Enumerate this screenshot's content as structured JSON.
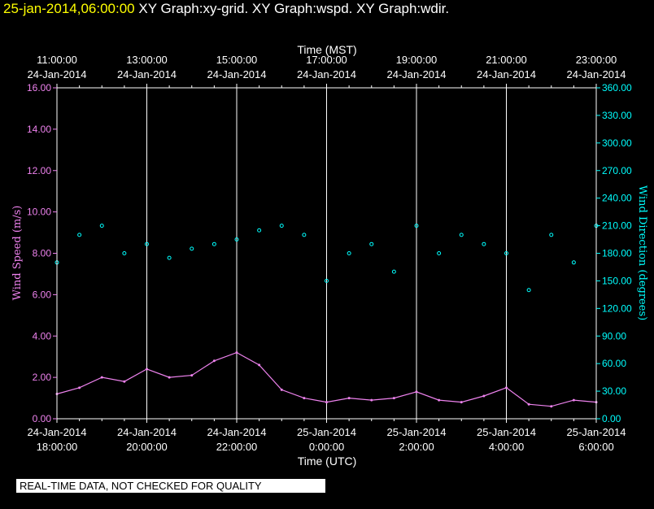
{
  "header": {
    "timestamp": "25-jan-2014,06:00:00",
    "graphs": "XY Graph:xy-grid.  XY Graph:wspd.  XY Graph:wdir."
  },
  "notice": "REAL-TIME DATA, NOT CHECKED FOR QUALITY",
  "colors": {
    "background": "#000000",
    "speed": "#ee82ee",
    "direction": "#00ffff",
    "grid": "#ffffff",
    "header_time": "#ffff00"
  },
  "chart_data": {
    "type": "scatter",
    "title": "",
    "top_axis": {
      "label": "Time (MST)",
      "ticks": [
        {
          "time": "11:00:00",
          "date": "24-Jan-2014"
        },
        {
          "time": "13:00:00",
          "date": "24-Jan-2014"
        },
        {
          "time": "15:00:00",
          "date": "24-Jan-2014"
        },
        {
          "time": "17:00:00",
          "date": "24-Jan-2014"
        },
        {
          "time": "19:00:00",
          "date": "24-Jan-2014"
        },
        {
          "time": "21:00:00",
          "date": "24-Jan-2014"
        },
        {
          "time": "23:00:00",
          "date": "24-Jan-2014"
        }
      ]
    },
    "bottom_axis": {
      "label": "Time (UTC)",
      "ticks": [
        {
          "date": "24-Jan-2014",
          "time": "18:00:00"
        },
        {
          "date": "24-Jan-2014",
          "time": "20:00:00"
        },
        {
          "date": "24-Jan-2014",
          "time": "22:00:00"
        },
        {
          "date": "25-Jan-2014",
          "time": "0:00:00"
        },
        {
          "date": "25-Jan-2014",
          "time": "2:00:00"
        },
        {
          "date": "25-Jan-2014",
          "time": "4:00:00"
        },
        {
          "date": "25-Jan-2014",
          "time": "6:00:00"
        }
      ]
    },
    "xlim": [
      "2014-01-24T18:00:00Z",
      "2014-01-25T06:00:00Z"
    ],
    "left_axis": {
      "label": "Wind Speed (m/s)",
      "ylim": [
        0,
        16
      ],
      "ticks": [
        "0.00",
        "2.00",
        "4.00",
        "6.00",
        "8.00",
        "10.00",
        "12.00",
        "14.00",
        "16.00"
      ]
    },
    "right_axis": {
      "label": "Wind Direction (degrees)",
      "ylim": [
        0,
        360
      ],
      "ticks": [
        "0.00",
        "30.00",
        "60.00",
        "90.00",
        "120.00",
        "150.00",
        "180.00",
        "210.00",
        "240.00",
        "270.00",
        "300.00",
        "330.00",
        "360.00"
      ]
    },
    "grid": "vertical lines at each time tick",
    "series": [
      {
        "key": "wspd",
        "style": "line",
        "color": "#ee82ee",
        "axis": "left",
        "x": [
          "2014-01-24T18:00:00Z",
          "2014-01-24T18:30:00Z",
          "2014-01-24T19:00:00Z",
          "2014-01-24T19:30:00Z",
          "2014-01-24T20:00:00Z",
          "2014-01-24T20:30:00Z",
          "2014-01-24T21:00:00Z",
          "2014-01-24T21:30:00Z",
          "2014-01-24T22:00:00Z",
          "2014-01-24T22:30:00Z",
          "2014-01-24T23:00:00Z",
          "2014-01-24T23:30:00Z",
          "2014-01-25T00:00:00Z",
          "2014-01-25T00:30:00Z",
          "2014-01-25T01:00:00Z",
          "2014-01-25T01:30:00Z",
          "2014-01-25T02:00:00Z",
          "2014-01-25T02:30:00Z",
          "2014-01-25T03:00:00Z",
          "2014-01-25T03:30:00Z",
          "2014-01-25T04:00:00Z",
          "2014-01-25T04:30:00Z",
          "2014-01-25T05:00:00Z",
          "2014-01-25T05:30:00Z",
          "2014-01-25T06:00:00Z"
        ],
        "y": [
          1.2,
          1.5,
          2.0,
          1.8,
          2.4,
          2.0,
          2.1,
          2.8,
          3.2,
          2.6,
          1.4,
          1.0,
          0.8,
          1.0,
          0.9,
          1.0,
          1.3,
          0.9,
          0.8,
          1.1,
          1.5,
          0.7,
          0.6,
          0.9,
          0.8
        ]
      },
      {
        "key": "wdir",
        "style": "points",
        "color": "#00ffff",
        "axis": "right",
        "x": [
          "2014-01-24T18:00:00Z",
          "2014-01-24T18:30:00Z",
          "2014-01-24T19:00:00Z",
          "2014-01-24T19:30:00Z",
          "2014-01-24T20:00:00Z",
          "2014-01-24T20:30:00Z",
          "2014-01-24T21:00:00Z",
          "2014-01-24T21:30:00Z",
          "2014-01-24T22:00:00Z",
          "2014-01-24T22:30:00Z",
          "2014-01-24T23:00:00Z",
          "2014-01-24T23:30:00Z",
          "2014-01-25T00:00:00Z",
          "2014-01-25T00:30:00Z",
          "2014-01-25T01:00:00Z",
          "2014-01-25T01:30:00Z",
          "2014-01-25T02:00:00Z",
          "2014-01-25T02:30:00Z",
          "2014-01-25T03:00:00Z",
          "2014-01-25T03:30:00Z",
          "2014-01-25T04:00:00Z",
          "2014-01-25T04:30:00Z",
          "2014-01-25T05:00:00Z",
          "2014-01-25T05:30:00Z",
          "2014-01-25T06:00:00Z"
        ],
        "y": [
          170,
          200,
          210,
          180,
          190,
          175,
          185,
          190,
          195,
          205,
          210,
          200,
          150,
          180,
          190,
          160,
          210,
          180,
          200,
          190,
          180,
          140,
          200,
          170,
          210
        ]
      }
    ]
  }
}
